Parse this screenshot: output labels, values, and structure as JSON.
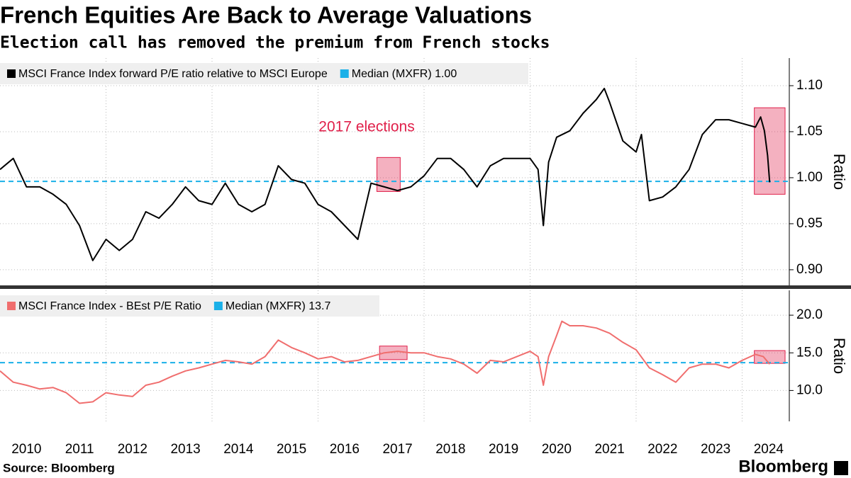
{
  "title": "French Equities Are Back to Average Valuations",
  "subtitle": "Election call has removed the premium from French stocks",
  "source": "Source: Bloomberg",
  "brand": "Bloomberg",
  "chart_data": [
    {
      "type": "line",
      "y_label": "Ratio",
      "annotation": "2017 elections",
      "x": [
        2010,
        2010.25,
        2010.5,
        2010.75,
        2011,
        2011.25,
        2011.5,
        2011.75,
        2012,
        2012.25,
        2012.5,
        2012.75,
        2013,
        2013.25,
        2013.5,
        2013.75,
        2014,
        2014.25,
        2014.5,
        2014.75,
        2015,
        2015.25,
        2015.5,
        2015.75,
        2016,
        2016.25,
        2016.5,
        2016.75,
        2017,
        2017.25,
        2017.5,
        2017.75,
        2018,
        2018.25,
        2018.5,
        2018.75,
        2019,
        2019.25,
        2019.5,
        2019.75,
        2020,
        2020.15,
        2020.25,
        2020.35,
        2020.5,
        2020.75,
        2021,
        2021.25,
        2021.4,
        2021.5,
        2021.75,
        2022,
        2022.1,
        2022.25,
        2022.5,
        2022.75,
        2023,
        2023.25,
        2023.5,
        2023.75,
        2024,
        2024.25,
        2024.35,
        2024.42,
        2024.48,
        2024.52
      ],
      "series": [
        {
          "name": "MSCI France Index forward P/E ratio relative to MSCI Europe",
          "color": "#000000",
          "values": [
            1.009,
            1.021,
            0.99,
            0.99,
            0.982,
            0.971,
            0.948,
            0.91,
            0.933,
            0.921,
            0.933,
            0.963,
            0.956,
            0.971,
            0.99,
            0.975,
            0.971,
            0.994,
            0.971,
            0.963,
            0.971,
            1.013,
            0.998,
            0.994,
            0.971,
            0.963,
            0.948,
            0.933,
            0.994,
            0.99,
            0.986,
            0.99,
            1.002,
            1.021,
            1.021,
            1.009,
            0.99,
            1.013,
            1.021,
            1.021,
            1.021,
            1.009,
            0.948,
            1.017,
            1.044,
            1.051,
            1.07,
            1.085,
            1.097,
            1.082,
            1.04,
            1.028,
            1.047,
            0.975,
            0.979,
            0.99,
            1.009,
            1.047,
            1.063,
            1.063,
            1.059,
            1.055,
            1.066,
            1.051,
            1.024,
            0.995
          ]
        }
      ],
      "median": {
        "name": "Median (MXFR) 1.00",
        "value": 0.996,
        "color": "#1ab0e8"
      },
      "highlights": [
        {
          "x": [
            2017.11,
            2017.55
          ],
          "y": [
            0.985,
            1.022
          ]
        },
        {
          "x": [
            2024.23,
            2024.81
          ],
          "y": [
            0.982,
            1.076
          ]
        }
      ],
      "highlight_color": "#e0204a",
      "xlim": [
        2010,
        2024.89
      ],
      "ylim": [
        0.883,
        1.13
      ],
      "xgrid": [
        2012,
        2014,
        2016,
        2018,
        2020,
        2022,
        2024
      ],
      "yticks": [
        {
          "value": 0.9,
          "label": "0.90"
        },
        {
          "value": 0.95,
          "label": "0.95"
        },
        {
          "value": 1.0,
          "label": "1.00"
        },
        {
          "value": 1.05,
          "label": "1.05"
        },
        {
          "value": 1.1,
          "label": "1.10"
        }
      ]
    },
    {
      "type": "line",
      "y_label": "Ratio",
      "x": [
        2010,
        2010.25,
        2010.5,
        2010.75,
        2011,
        2011.25,
        2011.5,
        2011.75,
        2012,
        2012.25,
        2012.5,
        2012.75,
        2013,
        2013.25,
        2013.5,
        2013.75,
        2014,
        2014.25,
        2014.5,
        2014.75,
        2015,
        2015.25,
        2015.5,
        2015.75,
        2016,
        2016.25,
        2016.5,
        2016.75,
        2017,
        2017.25,
        2017.5,
        2017.75,
        2018,
        2018.25,
        2018.5,
        2018.75,
        2019,
        2019.25,
        2019.5,
        2019.75,
        2020,
        2020.15,
        2020.25,
        2020.35,
        2020.5,
        2020.6,
        2020.75,
        2021,
        2021.25,
        2021.5,
        2021.75,
        2022,
        2022.25,
        2022.5,
        2022.75,
        2023,
        2023.25,
        2023.5,
        2023.75,
        2024,
        2024.25,
        2024.4,
        2024.52
      ],
      "series": [
        {
          "name": "MSCI France Index - BEst P/E Ratio",
          "color": "#f06e6e",
          "values": [
            12.6,
            11.1,
            10.7,
            10.2,
            10.4,
            9.7,
            8.3,
            8.5,
            9.7,
            9.4,
            9.2,
            10.7,
            11.1,
            11.9,
            12.6,
            13.0,
            13.5,
            14.0,
            13.8,
            13.5,
            14.5,
            16.7,
            15.7,
            15.0,
            14.2,
            14.5,
            13.8,
            14.0,
            14.5,
            15.0,
            15.2,
            15.0,
            15.0,
            14.5,
            14.2,
            13.5,
            12.3,
            14.0,
            13.8,
            14.5,
            15.2,
            14.5,
            10.7,
            14.5,
            17.3,
            19.2,
            18.6,
            18.6,
            18.3,
            17.6,
            16.4,
            15.4,
            13.0,
            12.1,
            11.1,
            13.0,
            13.5,
            13.5,
            13.0,
            14.0,
            14.8,
            14.5,
            13.5
          ]
        }
      ],
      "median": {
        "name": "Median (MXFR) 13.7",
        "value": 13.7,
        "color": "#1ab0e8"
      },
      "highlights": [
        {
          "x": [
            2017.16,
            2017.68
          ],
          "y": [
            14.1,
            15.9
          ]
        },
        {
          "x": [
            2024.23,
            2024.81
          ],
          "y": [
            13.6,
            15.3
          ]
        }
      ],
      "highlight_color": "#e0204a",
      "xlim": [
        2010,
        2024.89
      ],
      "ylim": [
        5.9,
        23.3
      ],
      "xgrid": [
        2012,
        2014,
        2016,
        2018,
        2020,
        2022,
        2024
      ],
      "yticks": [
        {
          "value": 10,
          "label": "10.0"
        },
        {
          "value": 15,
          "label": "15.0"
        },
        {
          "value": 20,
          "label": "20.0"
        }
      ],
      "xticks": [
        {
          "value": 2010.5,
          "label": "2010"
        },
        {
          "value": 2011.5,
          "label": "2011"
        },
        {
          "value": 2012.5,
          "label": "2012"
        },
        {
          "value": 2013.5,
          "label": "2013"
        },
        {
          "value": 2014.5,
          "label": "2014"
        },
        {
          "value": 2015.5,
          "label": "2015"
        },
        {
          "value": 2016.5,
          "label": "2016"
        },
        {
          "value": 2017.5,
          "label": "2017"
        },
        {
          "value": 2018.5,
          "label": "2018"
        },
        {
          "value": 2019.5,
          "label": "2019"
        },
        {
          "value": 2020.5,
          "label": "2020"
        },
        {
          "value": 2021.5,
          "label": "2021"
        },
        {
          "value": 2022.5,
          "label": "2022"
        },
        {
          "value": 2023.5,
          "label": "2023"
        },
        {
          "value": 2024.5,
          "label": "2024"
        }
      ]
    }
  ]
}
